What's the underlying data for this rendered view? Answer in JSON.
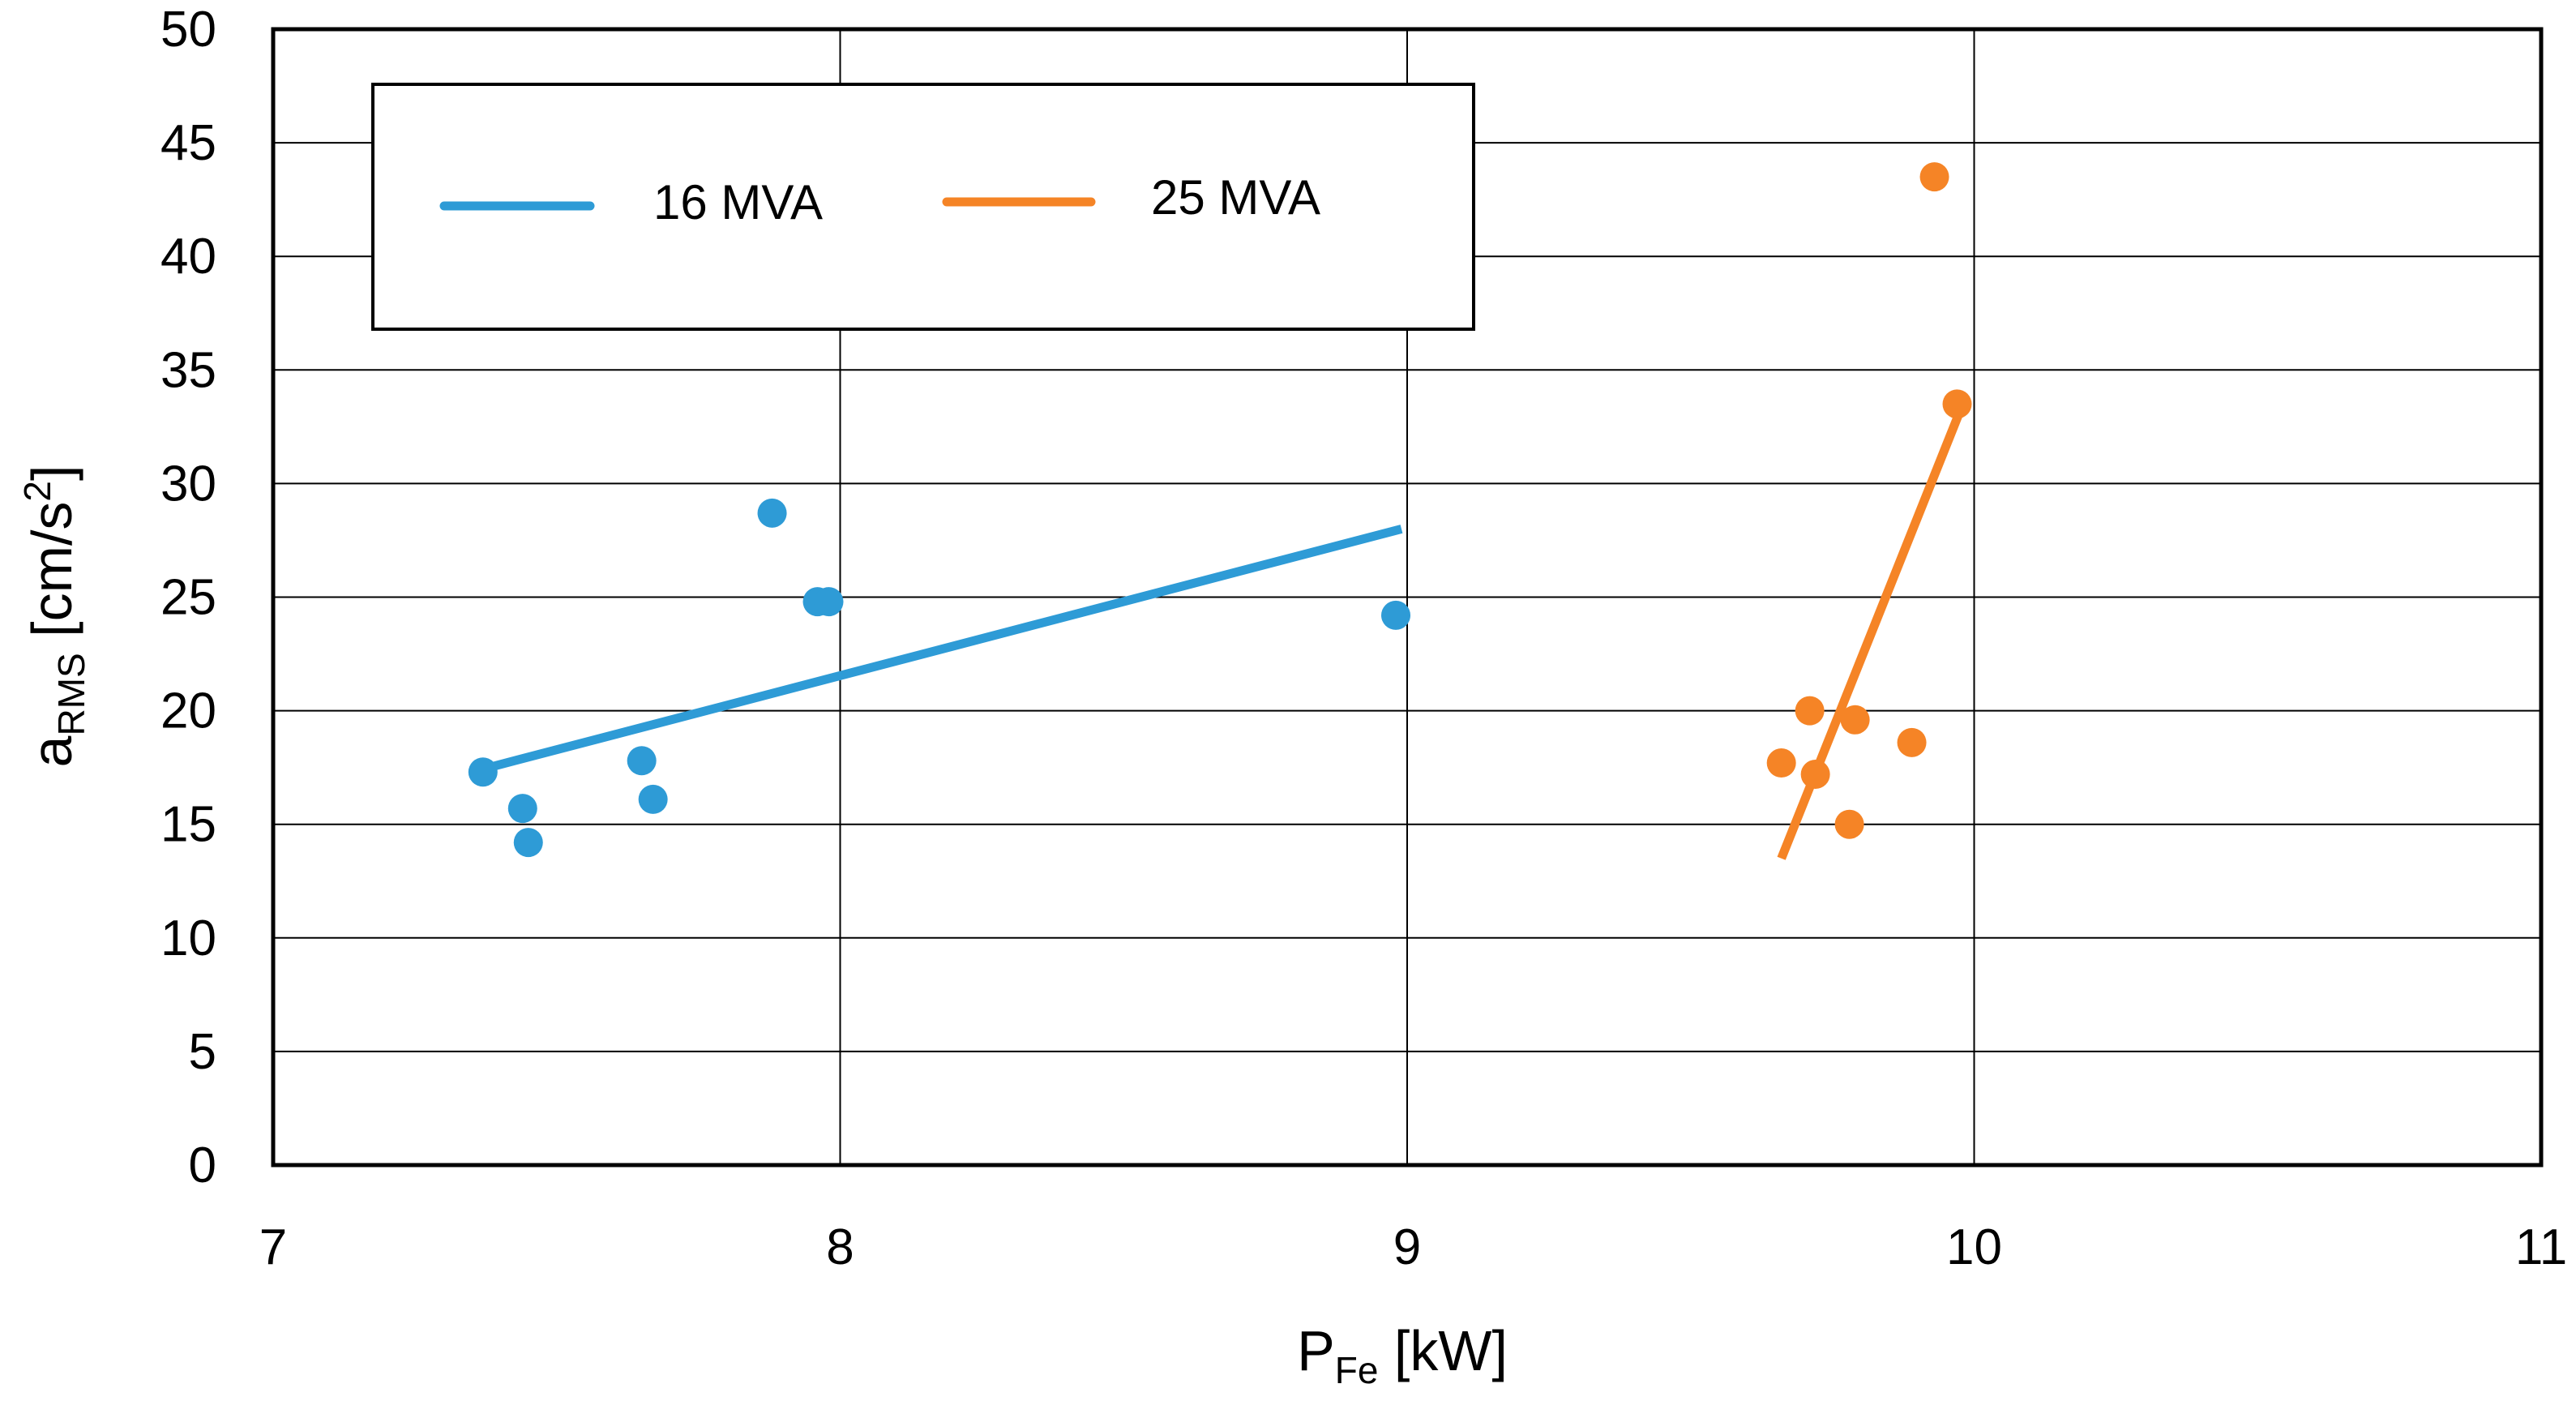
{
  "chart_data": {
    "type": "scatter",
    "title": "",
    "xlabel": {
      "main": "P",
      "sub": "Fe",
      "unit": " [kW]"
    },
    "ylabel": {
      "main": "a",
      "sub": "RMS",
      "unit_pre": " [cm/s",
      "sup": "2",
      "unit_post": "]"
    },
    "xlim": [
      7,
      11
    ],
    "ylim": [
      0,
      50
    ],
    "xticks": [
      7,
      8,
      9,
      10,
      11
    ],
    "yticks": [
      0,
      5,
      10,
      15,
      20,
      25,
      30,
      35,
      40,
      45,
      50
    ],
    "grid": true,
    "legend": {
      "position": "top-left",
      "entries": [
        "16 MVA",
        "25 MVA"
      ]
    },
    "series": [
      {
        "name": "16 MVA",
        "color": "#2e9bd6",
        "points": [
          [
            7.37,
            17.3
          ],
          [
            7.44,
            15.7
          ],
          [
            7.45,
            14.2
          ],
          [
            7.65,
            17.8
          ],
          [
            7.67,
            16.1
          ],
          [
            7.88,
            28.7
          ],
          [
            7.96,
            24.8
          ],
          [
            7.98,
            24.8
          ],
          [
            8.98,
            24.2
          ]
        ],
        "trendline": [
          [
            7.38,
            17.5
          ],
          [
            8.99,
            28.0
          ]
        ]
      },
      {
        "name": "25 MVA",
        "color": "#f58426",
        "points": [
          [
            9.66,
            17.7
          ],
          [
            9.71,
            20.0
          ],
          [
            9.72,
            17.2
          ],
          [
            9.78,
            15.0
          ],
          [
            9.79,
            19.6
          ],
          [
            9.89,
            18.6
          ],
          [
            9.93,
            43.5
          ],
          [
            9.97,
            33.5
          ]
        ],
        "trendline": [
          [
            9.66,
            13.5
          ],
          [
            9.98,
            33.5
          ]
        ]
      }
    ]
  }
}
